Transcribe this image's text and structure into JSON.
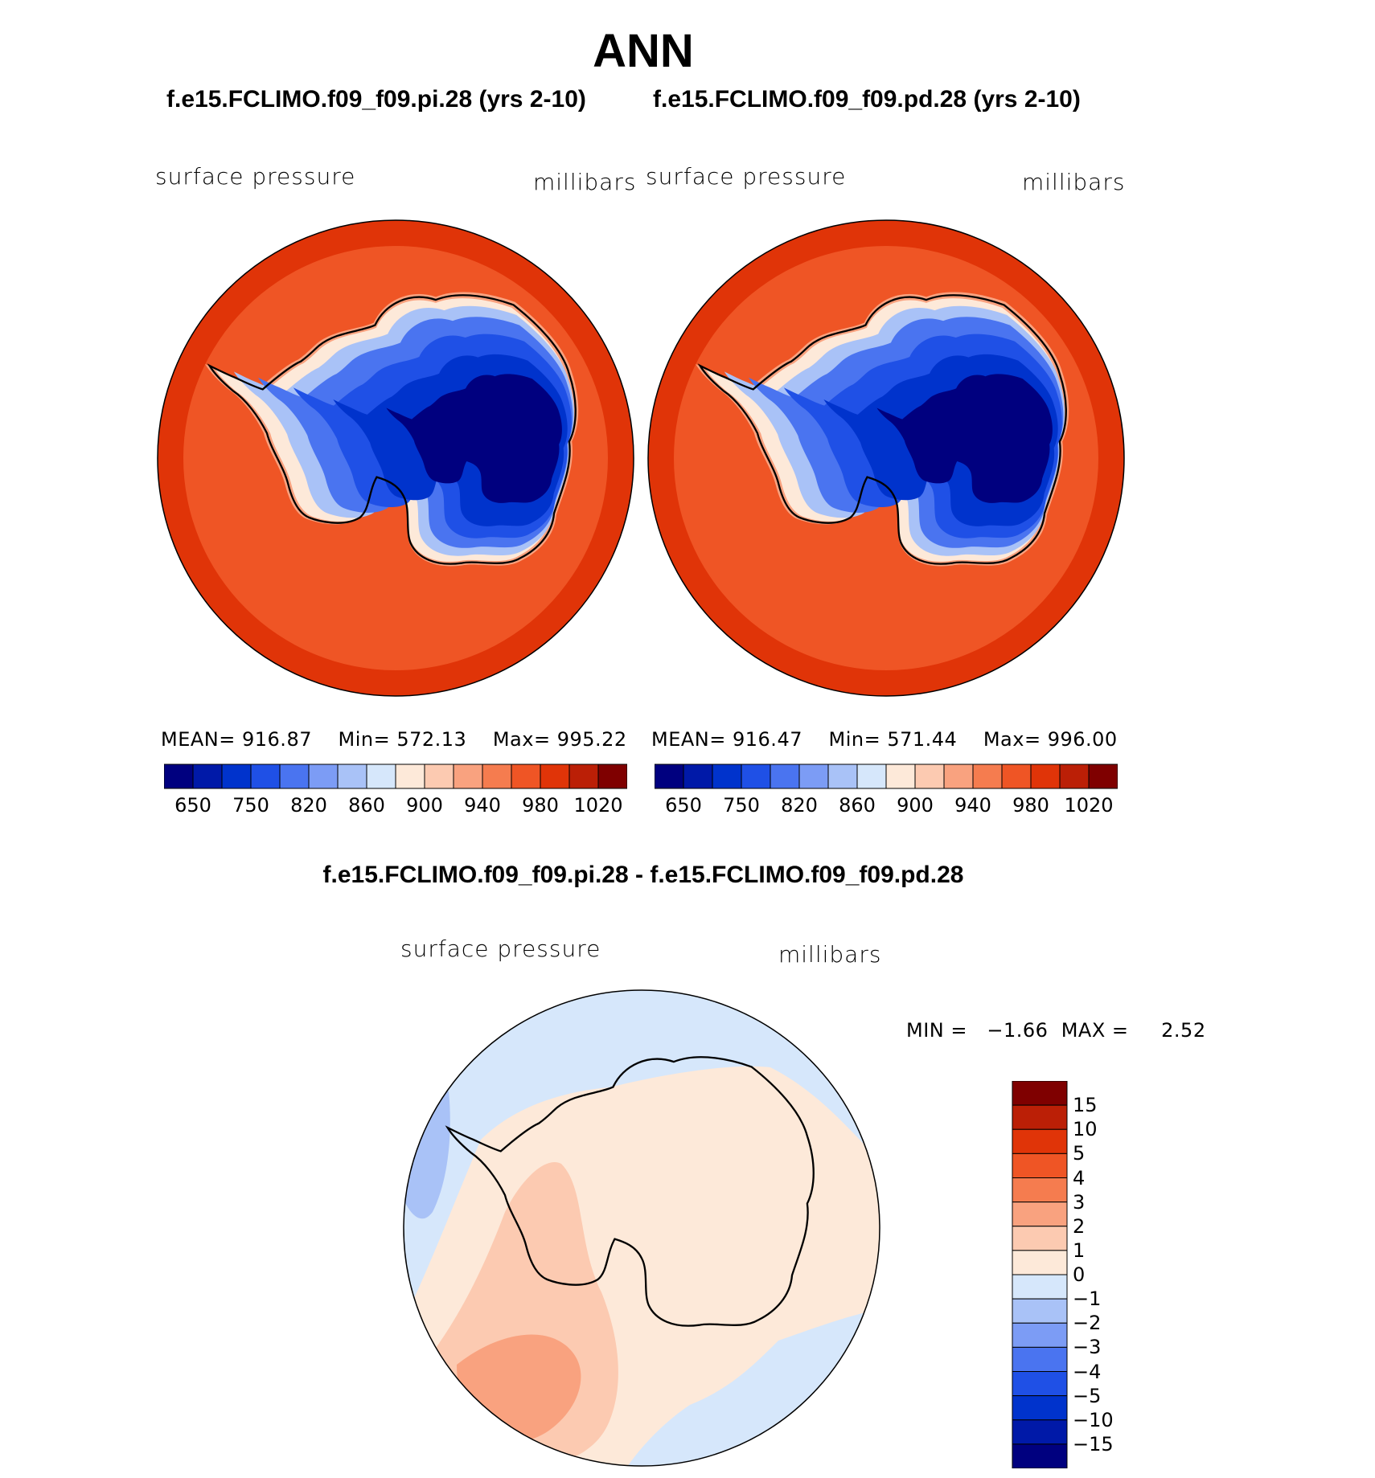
{
  "title": "ANN",
  "panels": [
    {
      "case": "f.e15.FCLIMO.f09_f09.pi.28 (yrs 2-10)",
      "variable": "surface pressure",
      "units": "millibars",
      "stats": {
        "mean_label": "MEAN=",
        "mean": "916.87",
        "min_label": "Min=",
        "min": "572.13",
        "max_label": "Max=",
        "max": "995.22"
      }
    },
    {
      "case": "f.e15.FCLIMO.f09_f09.pd.28 (yrs 2-10)",
      "variable": "surface pressure",
      "units": "millibars",
      "stats": {
        "mean_label": "MEAN=",
        "mean": "916.47",
        "min_label": "Min=",
        "min": "571.44",
        "max_label": "Max=",
        "max": "996.00"
      }
    }
  ],
  "field_colorbar": {
    "colors": [
      "#00007f",
      "#0019a8",
      "#0033cc",
      "#1f50e6",
      "#4a74f0",
      "#7c9cf5",
      "#a9c2f7",
      "#d6e7fb",
      "#fde9d9",
      "#fccab1",
      "#f9a27f",
      "#f57c4f",
      "#ef5525",
      "#e03408",
      "#bb1f06",
      "#7f0000"
    ],
    "ticks": [
      "650",
      "750",
      "820",
      "860",
      "900",
      "940",
      "980",
      "1020"
    ]
  },
  "difference": {
    "title": "f.e15.FCLIMO.f09_f09.pi.28 - f.e15.FCLIMO.f09_f09.pd.28",
    "variable": "surface pressure",
    "units": "millibars",
    "min_label": "MIN =",
    "min": "−1.66",
    "max_label": "MAX =",
    "max": "2.52"
  },
  "diff_colorbar": {
    "colors": [
      "#7f0000",
      "#bb1f06",
      "#e03408",
      "#ef5525",
      "#f57c4f",
      "#f9a27f",
      "#fccab1",
      "#fde9d9",
      "#d6e7fb",
      "#a9c2f7",
      "#7c9cf5",
      "#4a74f0",
      "#1f50e6",
      "#0033cc",
      "#0019a8",
      "#00007f"
    ],
    "ticks": [
      "15",
      "10",
      "5",
      "4",
      "3",
      "2",
      "1",
      "0",
      "−1",
      "−2",
      "−3",
      "−4",
      "−5",
      "−10",
      "−15"
    ]
  },
  "map_colors": {
    "outer_ring": "#e03408",
    "ocean": "#ef5525",
    "diff_neg": "#d6e7fb",
    "diff_pos": "#fde9d9",
    "diff_pos2": "#fccab1",
    "diff_pos3": "#f9a27f",
    "diff_neg2": "#a9c2f7"
  }
}
